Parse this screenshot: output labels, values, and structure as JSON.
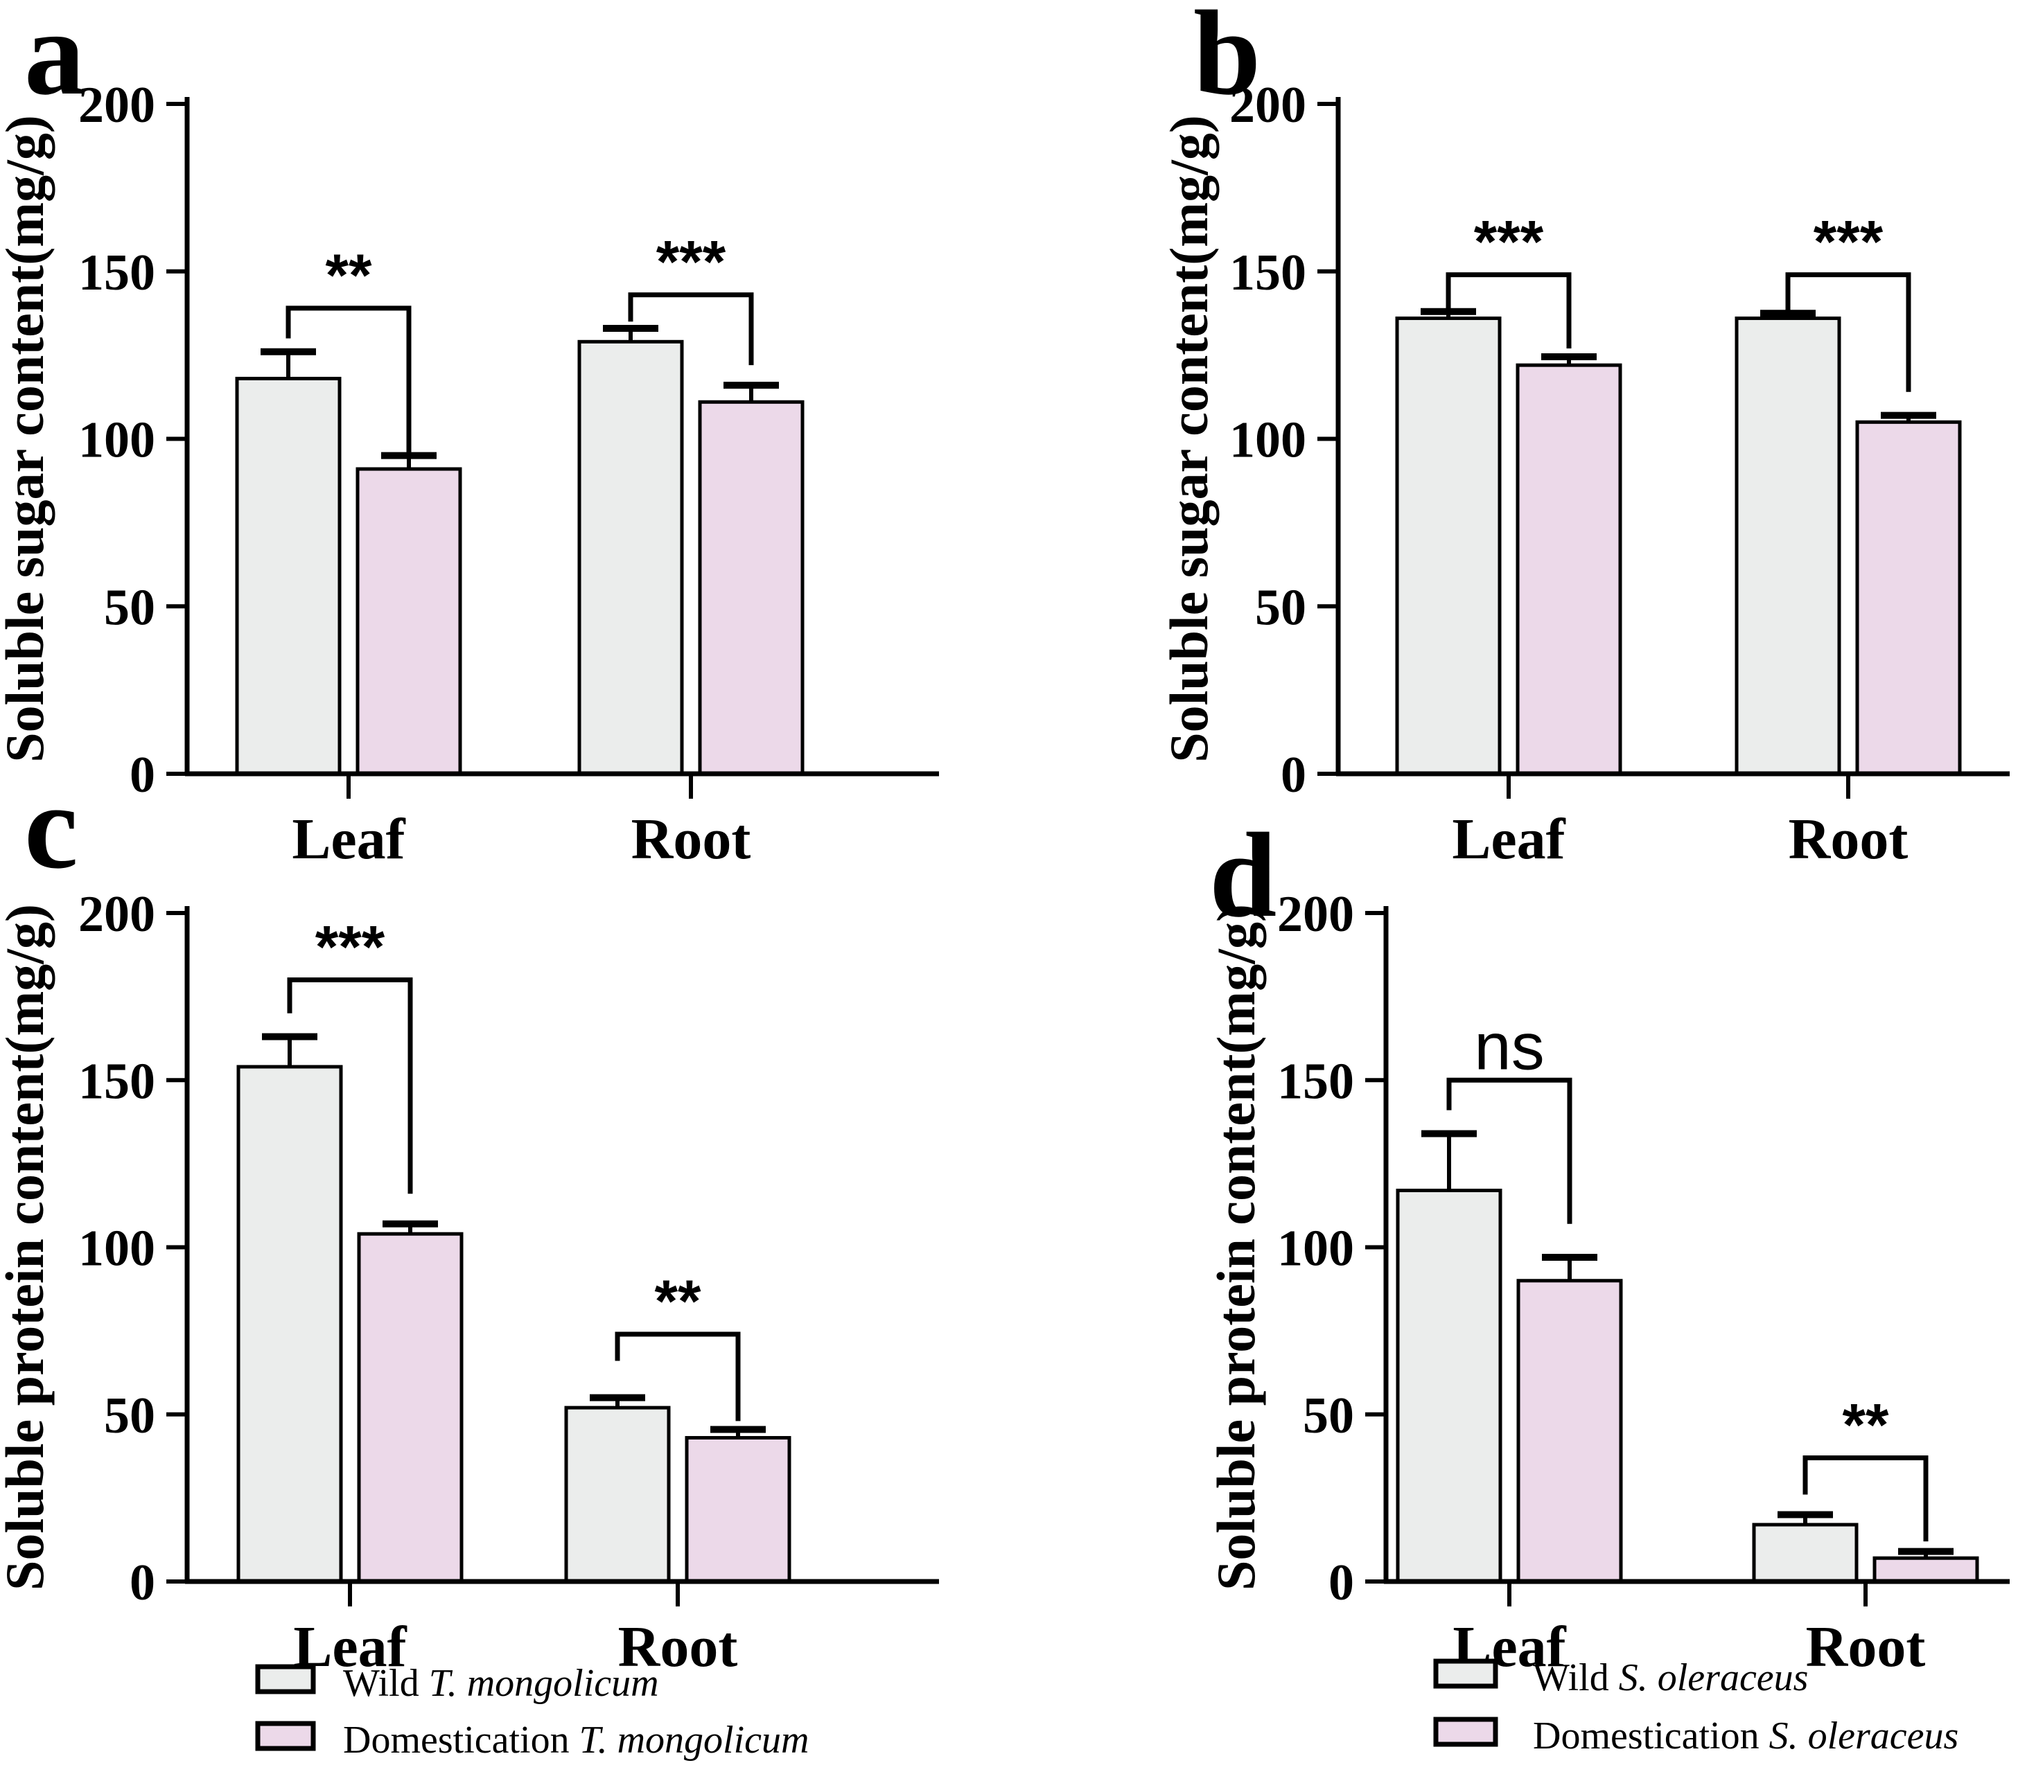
{
  "figure": {
    "background": "#ffffff",
    "outline_color": "#000000",
    "series_colors": {
      "wild": "#ebedec",
      "domestication": "#ecd9e9"
    }
  },
  "chart_data": [
    {
      "id": "a",
      "type": "bar",
      "panel_label": "a",
      "ylabel": "Soluble sugar content(mg/g)",
      "ylim": [
        0,
        200
      ],
      "yticks": [
        0,
        50,
        100,
        150,
        200
      ],
      "categories": [
        "Leaf",
        "Root"
      ],
      "series": [
        {
          "key": "wild",
          "values": [
            118,
            129
          ],
          "errors": [
            8,
            4
          ]
        },
        {
          "key": "domestication",
          "values": [
            91,
            111
          ],
          "errors": [
            4,
            5
          ]
        }
      ],
      "significance": [
        {
          "category": "Leaf",
          "label": "**",
          "bracket_y": 139,
          "left_drop_to": 130,
          "right_drop_to": 96
        },
        {
          "category": "Root",
          "label": "***",
          "bracket_y": 143,
          "left_drop_to": 135,
          "right_drop_to": 122
        }
      ]
    },
    {
      "id": "b",
      "type": "bar",
      "panel_label": "b",
      "ylabel": "Soluble sugar content(mg/g)",
      "ylim": [
        0,
        200
      ],
      "yticks": [
        0,
        50,
        100,
        150,
        200
      ],
      "categories": [
        "Leaf",
        "Root"
      ],
      "series": [
        {
          "key": "wild",
          "values": [
            136,
            136
          ],
          "errors": [
            2,
            1.5
          ]
        },
        {
          "key": "domestication",
          "values": [
            122,
            105
          ],
          "errors": [
            2.5,
            2
          ]
        }
      ],
      "significance": [
        {
          "category": "Leaf",
          "label": "***",
          "bracket_y": 149,
          "left_drop_to": 138,
          "right_drop_to": 127
        },
        {
          "category": "Root",
          "label": "***",
          "bracket_y": 149,
          "left_drop_to": 138,
          "right_drop_to": 114
        }
      ]
    },
    {
      "id": "c",
      "type": "bar",
      "panel_label": "c",
      "ylabel": "Soluble protein content(mg/g)",
      "ylim": [
        0,
        200
      ],
      "yticks": [
        0,
        50,
        100,
        150,
        200
      ],
      "categories": [
        "Leaf",
        "Root"
      ],
      "series": [
        {
          "key": "wild",
          "values": [
            154,
            52
          ],
          "errors": [
            9,
            3
          ]
        },
        {
          "key": "domestication",
          "values": [
            104,
            43
          ],
          "errors": [
            3,
            2.5
          ]
        }
      ],
      "significance": [
        {
          "category": "Leaf",
          "label": "***",
          "bracket_y": 180,
          "left_drop_to": 170,
          "right_drop_to": 116
        },
        {
          "category": "Root",
          "label": "**",
          "bracket_y": 74,
          "left_drop_to": 66,
          "right_drop_to": 48
        }
      ]
    },
    {
      "id": "d",
      "type": "bar",
      "panel_label": "d",
      "ylabel": "Soluble protein content(mg/g)",
      "ylim": [
        0,
        200
      ],
      "yticks": [
        0,
        50,
        100,
        150,
        200
      ],
      "categories": [
        "Leaf",
        "Root"
      ],
      "series": [
        {
          "key": "wild",
          "values": [
            117,
            17
          ],
          "errors": [
            17,
            3
          ]
        },
        {
          "key": "domestication",
          "values": [
            90,
            7
          ],
          "errors": [
            7,
            2
          ]
        }
      ],
      "significance": [
        {
          "category": "Leaf",
          "label": "ns",
          "bracket_y": 150,
          "left_drop_to": 141,
          "right_drop_to": 107
        },
        {
          "category": "Root",
          "label": "**",
          "bracket_y": 37,
          "left_drop_to": 26,
          "right_drop_to": 12
        }
      ]
    }
  ],
  "legends": [
    {
      "panel": "c",
      "items": [
        {
          "prefix": "Wild ",
          "species": "T. mongolicum",
          "key": "wild"
        },
        {
          "prefix": "Domestication ",
          "species": "T. mongolicum",
          "key": "domestication"
        }
      ]
    },
    {
      "panel": "d",
      "items": [
        {
          "prefix": "Wild ",
          "species": "S. oleraceus",
          "key": "wild"
        },
        {
          "prefix": "Domestication ",
          "species": "S. oleraceus",
          "key": "domestication"
        }
      ]
    }
  ]
}
